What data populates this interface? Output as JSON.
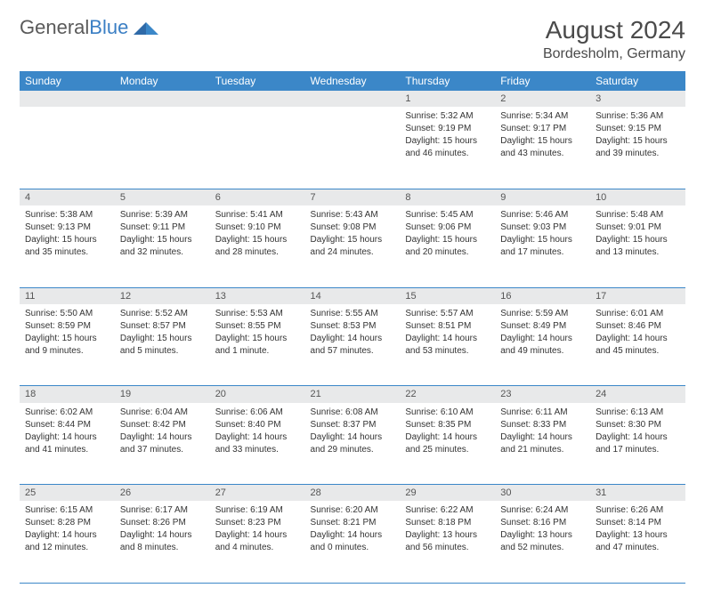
{
  "logo": {
    "text1": "General",
    "text2": "Blue"
  },
  "title": "August 2024",
  "location": "Bordesholm, Germany",
  "colors": {
    "header_bg": "#3b87c8",
    "header_text": "#ffffff",
    "daynum_bg": "#e8e9ea",
    "cell_border": "#3b87c8",
    "text": "#333333",
    "logo_gray": "#5a5a5a",
    "logo_blue": "#3b7fc4"
  },
  "day_headers": [
    "Sunday",
    "Monday",
    "Tuesday",
    "Wednesday",
    "Thursday",
    "Friday",
    "Saturday"
  ],
  "weeks": [
    [
      null,
      null,
      null,
      null,
      {
        "n": "1",
        "sr": "Sunrise: 5:32 AM",
        "ss": "Sunset: 9:19 PM",
        "d1": "Daylight: 15 hours",
        "d2": "and 46 minutes."
      },
      {
        "n": "2",
        "sr": "Sunrise: 5:34 AM",
        "ss": "Sunset: 9:17 PM",
        "d1": "Daylight: 15 hours",
        "d2": "and 43 minutes."
      },
      {
        "n": "3",
        "sr": "Sunrise: 5:36 AM",
        "ss": "Sunset: 9:15 PM",
        "d1": "Daylight: 15 hours",
        "d2": "and 39 minutes."
      }
    ],
    [
      {
        "n": "4",
        "sr": "Sunrise: 5:38 AM",
        "ss": "Sunset: 9:13 PM",
        "d1": "Daylight: 15 hours",
        "d2": "and 35 minutes."
      },
      {
        "n": "5",
        "sr": "Sunrise: 5:39 AM",
        "ss": "Sunset: 9:11 PM",
        "d1": "Daylight: 15 hours",
        "d2": "and 32 minutes."
      },
      {
        "n": "6",
        "sr": "Sunrise: 5:41 AM",
        "ss": "Sunset: 9:10 PM",
        "d1": "Daylight: 15 hours",
        "d2": "and 28 minutes."
      },
      {
        "n": "7",
        "sr": "Sunrise: 5:43 AM",
        "ss": "Sunset: 9:08 PM",
        "d1": "Daylight: 15 hours",
        "d2": "and 24 minutes."
      },
      {
        "n": "8",
        "sr": "Sunrise: 5:45 AM",
        "ss": "Sunset: 9:06 PM",
        "d1": "Daylight: 15 hours",
        "d2": "and 20 minutes."
      },
      {
        "n": "9",
        "sr": "Sunrise: 5:46 AM",
        "ss": "Sunset: 9:03 PM",
        "d1": "Daylight: 15 hours",
        "d2": "and 17 minutes."
      },
      {
        "n": "10",
        "sr": "Sunrise: 5:48 AM",
        "ss": "Sunset: 9:01 PM",
        "d1": "Daylight: 15 hours",
        "d2": "and 13 minutes."
      }
    ],
    [
      {
        "n": "11",
        "sr": "Sunrise: 5:50 AM",
        "ss": "Sunset: 8:59 PM",
        "d1": "Daylight: 15 hours",
        "d2": "and 9 minutes."
      },
      {
        "n": "12",
        "sr": "Sunrise: 5:52 AM",
        "ss": "Sunset: 8:57 PM",
        "d1": "Daylight: 15 hours",
        "d2": "and 5 minutes."
      },
      {
        "n": "13",
        "sr": "Sunrise: 5:53 AM",
        "ss": "Sunset: 8:55 PM",
        "d1": "Daylight: 15 hours",
        "d2": "and 1 minute."
      },
      {
        "n": "14",
        "sr": "Sunrise: 5:55 AM",
        "ss": "Sunset: 8:53 PM",
        "d1": "Daylight: 14 hours",
        "d2": "and 57 minutes."
      },
      {
        "n": "15",
        "sr": "Sunrise: 5:57 AM",
        "ss": "Sunset: 8:51 PM",
        "d1": "Daylight: 14 hours",
        "d2": "and 53 minutes."
      },
      {
        "n": "16",
        "sr": "Sunrise: 5:59 AM",
        "ss": "Sunset: 8:49 PM",
        "d1": "Daylight: 14 hours",
        "d2": "and 49 minutes."
      },
      {
        "n": "17",
        "sr": "Sunrise: 6:01 AM",
        "ss": "Sunset: 8:46 PM",
        "d1": "Daylight: 14 hours",
        "d2": "and 45 minutes."
      }
    ],
    [
      {
        "n": "18",
        "sr": "Sunrise: 6:02 AM",
        "ss": "Sunset: 8:44 PM",
        "d1": "Daylight: 14 hours",
        "d2": "and 41 minutes."
      },
      {
        "n": "19",
        "sr": "Sunrise: 6:04 AM",
        "ss": "Sunset: 8:42 PM",
        "d1": "Daylight: 14 hours",
        "d2": "and 37 minutes."
      },
      {
        "n": "20",
        "sr": "Sunrise: 6:06 AM",
        "ss": "Sunset: 8:40 PM",
        "d1": "Daylight: 14 hours",
        "d2": "and 33 minutes."
      },
      {
        "n": "21",
        "sr": "Sunrise: 6:08 AM",
        "ss": "Sunset: 8:37 PM",
        "d1": "Daylight: 14 hours",
        "d2": "and 29 minutes."
      },
      {
        "n": "22",
        "sr": "Sunrise: 6:10 AM",
        "ss": "Sunset: 8:35 PM",
        "d1": "Daylight: 14 hours",
        "d2": "and 25 minutes."
      },
      {
        "n": "23",
        "sr": "Sunrise: 6:11 AM",
        "ss": "Sunset: 8:33 PM",
        "d1": "Daylight: 14 hours",
        "d2": "and 21 minutes."
      },
      {
        "n": "24",
        "sr": "Sunrise: 6:13 AM",
        "ss": "Sunset: 8:30 PM",
        "d1": "Daylight: 14 hours",
        "d2": "and 17 minutes."
      }
    ],
    [
      {
        "n": "25",
        "sr": "Sunrise: 6:15 AM",
        "ss": "Sunset: 8:28 PM",
        "d1": "Daylight: 14 hours",
        "d2": "and 12 minutes."
      },
      {
        "n": "26",
        "sr": "Sunrise: 6:17 AM",
        "ss": "Sunset: 8:26 PM",
        "d1": "Daylight: 14 hours",
        "d2": "and 8 minutes."
      },
      {
        "n": "27",
        "sr": "Sunrise: 6:19 AM",
        "ss": "Sunset: 8:23 PM",
        "d1": "Daylight: 14 hours",
        "d2": "and 4 minutes."
      },
      {
        "n": "28",
        "sr": "Sunrise: 6:20 AM",
        "ss": "Sunset: 8:21 PM",
        "d1": "Daylight: 14 hours",
        "d2": "and 0 minutes."
      },
      {
        "n": "29",
        "sr": "Sunrise: 6:22 AM",
        "ss": "Sunset: 8:18 PM",
        "d1": "Daylight: 13 hours",
        "d2": "and 56 minutes."
      },
      {
        "n": "30",
        "sr": "Sunrise: 6:24 AM",
        "ss": "Sunset: 8:16 PM",
        "d1": "Daylight: 13 hours",
        "d2": "and 52 minutes."
      },
      {
        "n": "31",
        "sr": "Sunrise: 6:26 AM",
        "ss": "Sunset: 8:14 PM",
        "d1": "Daylight: 13 hours",
        "d2": "and 47 minutes."
      }
    ]
  ]
}
